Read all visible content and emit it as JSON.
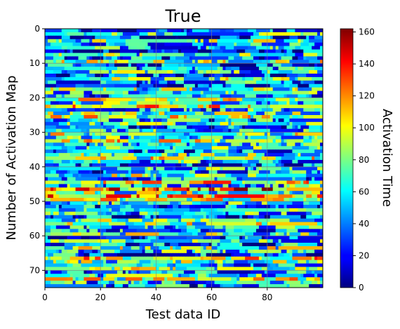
{
  "chart_data": {
    "type": "heatmap",
    "title": "True",
    "xlabel": "Test data ID",
    "ylabel": "Number of Activation Map",
    "colorbar_label": "Activation Time",
    "colormap": "jet",
    "n_cols": 100,
    "n_rows": 75,
    "xlim": [
      0,
      100
    ],
    "ylim": [
      75,
      0
    ],
    "x_ticks": [
      0,
      20,
      40,
      60,
      80
    ],
    "y_ticks": [
      0,
      10,
      20,
      30,
      40,
      50,
      60,
      70
    ],
    "colorbar_range": [
      0,
      162
    ],
    "colorbar_ticks": [
      0,
      20,
      40,
      60,
      80,
      100,
      120,
      140,
      160
    ],
    "grid": true,
    "row_profile_approx": [
      30,
      60,
      25,
      70,
      40,
      55,
      20,
      65,
      35,
      80,
      30,
      50,
      60,
      25,
      75,
      45,
      30,
      70,
      55,
      40,
      85,
      60,
      95,
      50,
      70,
      90,
      45,
      65,
      30,
      55,
      80,
      60,
      90,
      50,
      70,
      40,
      65,
      85,
      55,
      30,
      60,
      45,
      75,
      40,
      95,
      55,
      120,
      70,
      110,
      85,
      60,
      40,
      75,
      55,
      30,
      65,
      80,
      50,
      45,
      70,
      30,
      60,
      40,
      75,
      55,
      35,
      100,
      70,
      50,
      80,
      40,
      60,
      85,
      55,
      40
    ]
  }
}
